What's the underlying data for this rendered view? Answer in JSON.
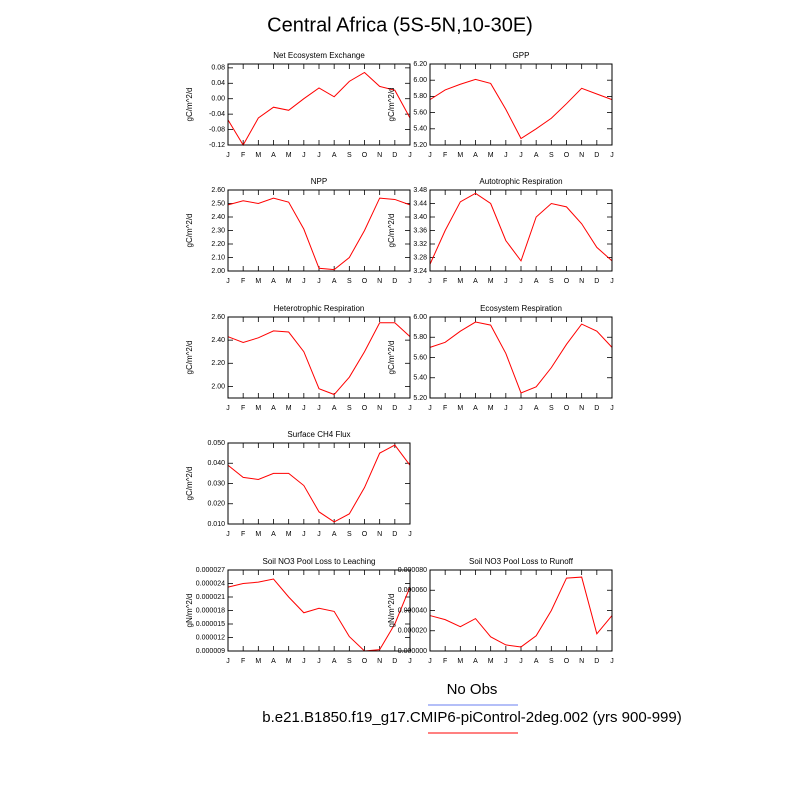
{
  "title": "Central Africa (5S-5N,10-30E)",
  "legend": [
    {
      "name": "No Obs",
      "color": "#6a7ff0"
    },
    {
      "name": "b.e21.B1850.f19_g17.CMIP6-piControl-2deg.002 (yrs 900-999)",
      "color": "#ff0000"
    }
  ],
  "chart_data": [
    {
      "type": "line",
      "title": "Net Ecosystem Exchange",
      "y_label": "gC/m^2/d",
      "categories": [
        "J",
        "F",
        "M",
        "A",
        "M",
        "J",
        "J",
        "A",
        "S",
        "O",
        "N",
        "D",
        "J"
      ],
      "values": [
        -0.055,
        -0.12,
        -0.05,
        -0.022,
        -0.03,
        0.0,
        0.028,
        0.005,
        0.045,
        0.068,
        0.032,
        0.022,
        -0.05
      ],
      "color": "#ff0000",
      "ylim": [
        -0.12,
        0.09
      ],
      "yticks": [
        -0.12,
        -0.08,
        -0.04,
        {
          "value": 0,
          "label": "0.00"
        },
        0.04,
        0.08
      ]
    },
    {
      "type": "line",
      "title": "GPP",
      "y_label": "gC/m^2/d",
      "categories": [
        "J",
        "F",
        "M",
        "A",
        "M",
        "J",
        "J",
        "A",
        "S",
        "O",
        "N",
        "D",
        "J"
      ],
      "values": [
        5.76,
        5.88,
        5.95,
        6.01,
        5.96,
        5.64,
        5.28,
        5.4,
        5.53,
        5.71,
        5.9,
        5.83,
        5.76
      ],
      "color": "#ff0000",
      "ylim": [
        5.2,
        6.2
      ],
      "yticks": [
        {
          "value": 5.2,
          "label": "5.20"
        },
        {
          "value": 5.4,
          "label": "5.40"
        },
        {
          "value": 5.6,
          "label": "5.60"
        },
        {
          "value": 5.8,
          "label": "5.80"
        },
        {
          "value": 6.0,
          "label": "6.00"
        },
        {
          "value": 6.2,
          "label": "6.20"
        }
      ]
    },
    {
      "type": "line",
      "title": "NPP",
      "y_label": "gC/m^2/d",
      "categories": [
        "J",
        "F",
        "M",
        "A",
        "M",
        "J",
        "J",
        "A",
        "S",
        "O",
        "N",
        "D",
        "J"
      ],
      "values": [
        2.49,
        2.52,
        2.5,
        2.54,
        2.51,
        2.31,
        2.02,
        2.01,
        2.1,
        2.3,
        2.54,
        2.53,
        2.49
      ],
      "color": "#ff0000",
      "ylim": [
        2.0,
        2.6
      ],
      "yticks": [
        {
          "value": 2.0,
          "label": "2.00"
        },
        {
          "value": 2.1,
          "label": "2.10"
        },
        {
          "value": 2.2,
          "label": "2.20"
        },
        {
          "value": 2.3,
          "label": "2.30"
        },
        {
          "value": 2.4,
          "label": "2.40"
        },
        {
          "value": 2.5,
          "label": "2.50"
        },
        {
          "value": 2.6,
          "label": "2.60"
        }
      ]
    },
    {
      "type": "line",
      "title": "Autotrophic Respiration",
      "y_label": "gC/m^2/d",
      "categories": [
        "J",
        "F",
        "M",
        "A",
        "M",
        "J",
        "J",
        "A",
        "S",
        "O",
        "N",
        "D",
        "J"
      ],
      "values": [
        3.26,
        3.36,
        3.445,
        3.47,
        3.44,
        3.33,
        3.27,
        3.4,
        3.44,
        3.43,
        3.38,
        3.31,
        3.27
      ],
      "color": "#ff0000",
      "ylim": [
        3.24,
        3.48
      ],
      "yticks": [
        3.24,
        3.28,
        3.32,
        3.36,
        {
          "value": 3.4,
          "label": "3.40"
        },
        3.44,
        3.48
      ]
    },
    {
      "type": "line",
      "title": "Heterotrophic Respiration",
      "y_label": "gC/m^2/d",
      "categories": [
        "J",
        "F",
        "M",
        "A",
        "M",
        "J",
        "J",
        "A",
        "S",
        "O",
        "N",
        "D",
        "J"
      ],
      "values": [
        2.43,
        2.38,
        2.42,
        2.48,
        2.47,
        2.3,
        1.98,
        1.93,
        2.08,
        2.3,
        2.55,
        2.55,
        2.43
      ],
      "color": "#ff0000",
      "ylim": [
        1.9,
        2.6
      ],
      "yticks": [
        {
          "value": 2.0,
          "label": "2.00"
        },
        {
          "value": 2.2,
          "label": "2.20"
        },
        {
          "value": 2.4,
          "label": "2.40"
        },
        {
          "value": 2.6,
          "label": "2.60"
        }
      ]
    },
    {
      "type": "line",
      "title": "Ecosystem Respiration",
      "y_label": "gC/m^2/d",
      "categories": [
        "J",
        "F",
        "M",
        "A",
        "M",
        "J",
        "J",
        "A",
        "S",
        "O",
        "N",
        "D",
        "J"
      ],
      "values": [
        5.7,
        5.75,
        5.86,
        5.95,
        5.92,
        5.64,
        5.25,
        5.31,
        5.5,
        5.73,
        5.93,
        5.86,
        5.7
      ],
      "color": "#ff0000",
      "ylim": [
        5.2,
        6.0
      ],
      "yticks": [
        {
          "value": 5.2,
          "label": "5.20"
        },
        {
          "value": 5.4,
          "label": "5.40"
        },
        {
          "value": 5.6,
          "label": "5.60"
        },
        {
          "value": 5.8,
          "label": "5.80"
        },
        {
          "value": 6.0,
          "label": "6.00"
        }
      ]
    },
    {
      "type": "line",
      "title": "Surface CH4 Flux",
      "y_label": "gC/m^2/d",
      "categories": [
        "J",
        "F",
        "M",
        "A",
        "M",
        "J",
        "J",
        "A",
        "S",
        "O",
        "N",
        "D",
        "J"
      ],
      "values": [
        0.039,
        0.033,
        0.032,
        0.035,
        0.035,
        0.029,
        0.016,
        0.011,
        0.015,
        0.028,
        0.045,
        0.049,
        0.039
      ],
      "color": "#ff0000",
      "ylim": [
        0.01,
        0.05
      ],
      "yticks": [
        {
          "value": 0.01,
          "label": "0.010"
        },
        {
          "value": 0.02,
          "label": "0.020"
        },
        {
          "value": 0.03,
          "label": "0.030"
        },
        {
          "value": 0.04,
          "label": "0.040"
        },
        {
          "value": 0.05,
          "label": "0.050"
        }
      ]
    },
    {
      "type": "line",
      "title": "Soil NO3 Pool Loss to Leaching",
      "y_label": "gN/m^2/d",
      "categories": [
        "J",
        "F",
        "M",
        "A",
        "M",
        "J",
        "J",
        "A",
        "S",
        "O",
        "N",
        "D",
        "J"
      ],
      "values": [
        2.32e-05,
        2.4e-05,
        2.43e-05,
        2.5e-05,
        2.1e-05,
        1.75e-05,
        1.85e-05,
        1.78e-05,
        1.22e-05,
        9e-06,
        9.3e-06,
        1.5e-05,
        2.32e-05
      ],
      "color": "#ff0000",
      "ylim": [
        9e-06,
        2.7e-05
      ],
      "yticks": [
        {
          "value": 9e-06,
          "label": "0.000009"
        },
        {
          "value": 1.2e-05,
          "label": "0.000012"
        },
        {
          "value": 1.5e-05,
          "label": "0.000015"
        },
        {
          "value": 1.8e-05,
          "label": "0.000018"
        },
        {
          "value": 2.1e-05,
          "label": "0.000021"
        },
        {
          "value": 2.4e-05,
          "label": "0.000024"
        },
        {
          "value": 2.7e-05,
          "label": "0.000027"
        }
      ]
    },
    {
      "type": "line",
      "title": "Soil NO3 Pool Loss to Runoff",
      "y_label": "gN/m^2/d",
      "categories": [
        "J",
        "F",
        "M",
        "A",
        "M",
        "J",
        "J",
        "A",
        "S",
        "O",
        "N",
        "D",
        "J"
      ],
      "values": [
        3.5e-05,
        3.1e-05,
        2.4e-05,
        3.2e-05,
        1.4e-05,
        6e-06,
        4e-06,
        1.5e-05,
        4e-05,
        7.2e-05,
        7.3e-05,
        1.7e-05,
        3.5e-05
      ],
      "color": "#ff0000",
      "ylim": [
        0,
        8e-05
      ],
      "yticks": [
        {
          "value": 0,
          "label": "0.000000"
        },
        {
          "value": 2e-05,
          "label": "0.000020"
        },
        {
          "value": 4e-05,
          "label": "0.000040"
        },
        {
          "value": 6e-05,
          "label": "0.000060"
        },
        {
          "value": 8e-05,
          "label": "0.000080"
        }
      ]
    }
  ]
}
